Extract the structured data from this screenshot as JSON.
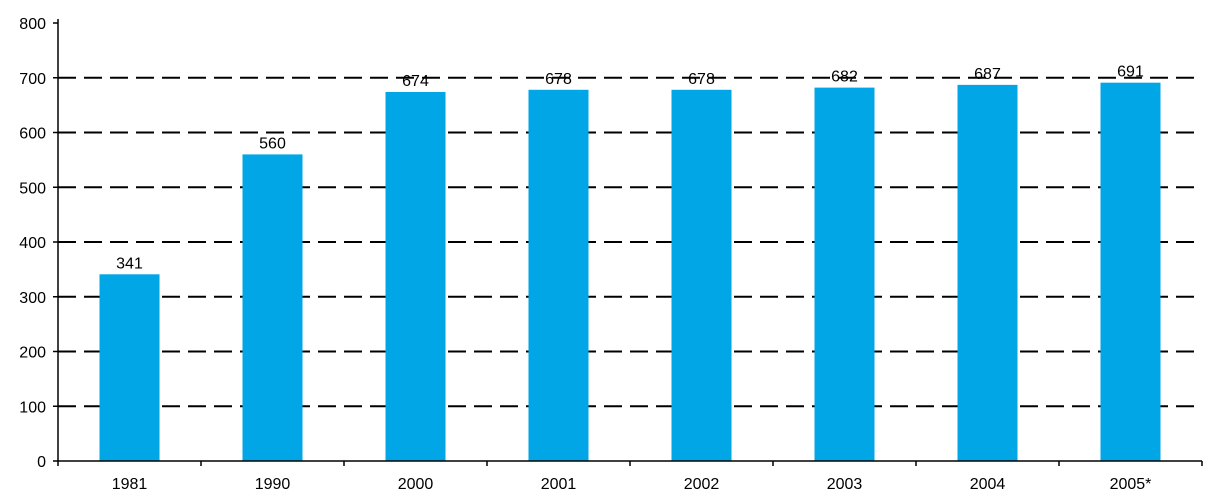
{
  "chart_data": {
    "type": "bar",
    "title": "",
    "xlabel": "",
    "ylabel": "",
    "categories": [
      "1981",
      "1990",
      "2000",
      "2001",
      "2002",
      "2003",
      "2004",
      "2005*"
    ],
    "values": [
      341,
      560,
      674,
      678,
      678,
      682,
      687,
      691
    ],
    "data_labels": [
      "341",
      "560",
      "674",
      "678",
      "678",
      "682",
      "687",
      "691"
    ],
    "ylim": [
      0,
      800
    ],
    "yticks": [
      0,
      100,
      200,
      300,
      400,
      500,
      600,
      700,
      800
    ],
    "ytick_labels": [
      "0",
      "100",
      "200",
      "300",
      "400",
      "500",
      "600",
      "700",
      "800"
    ],
    "grid": "horizontal dashed",
    "legend": "none",
    "colors": {
      "bar": "#00A6E6",
      "axis": "#000000",
      "grid": "#000000",
      "text": "#000000"
    }
  }
}
